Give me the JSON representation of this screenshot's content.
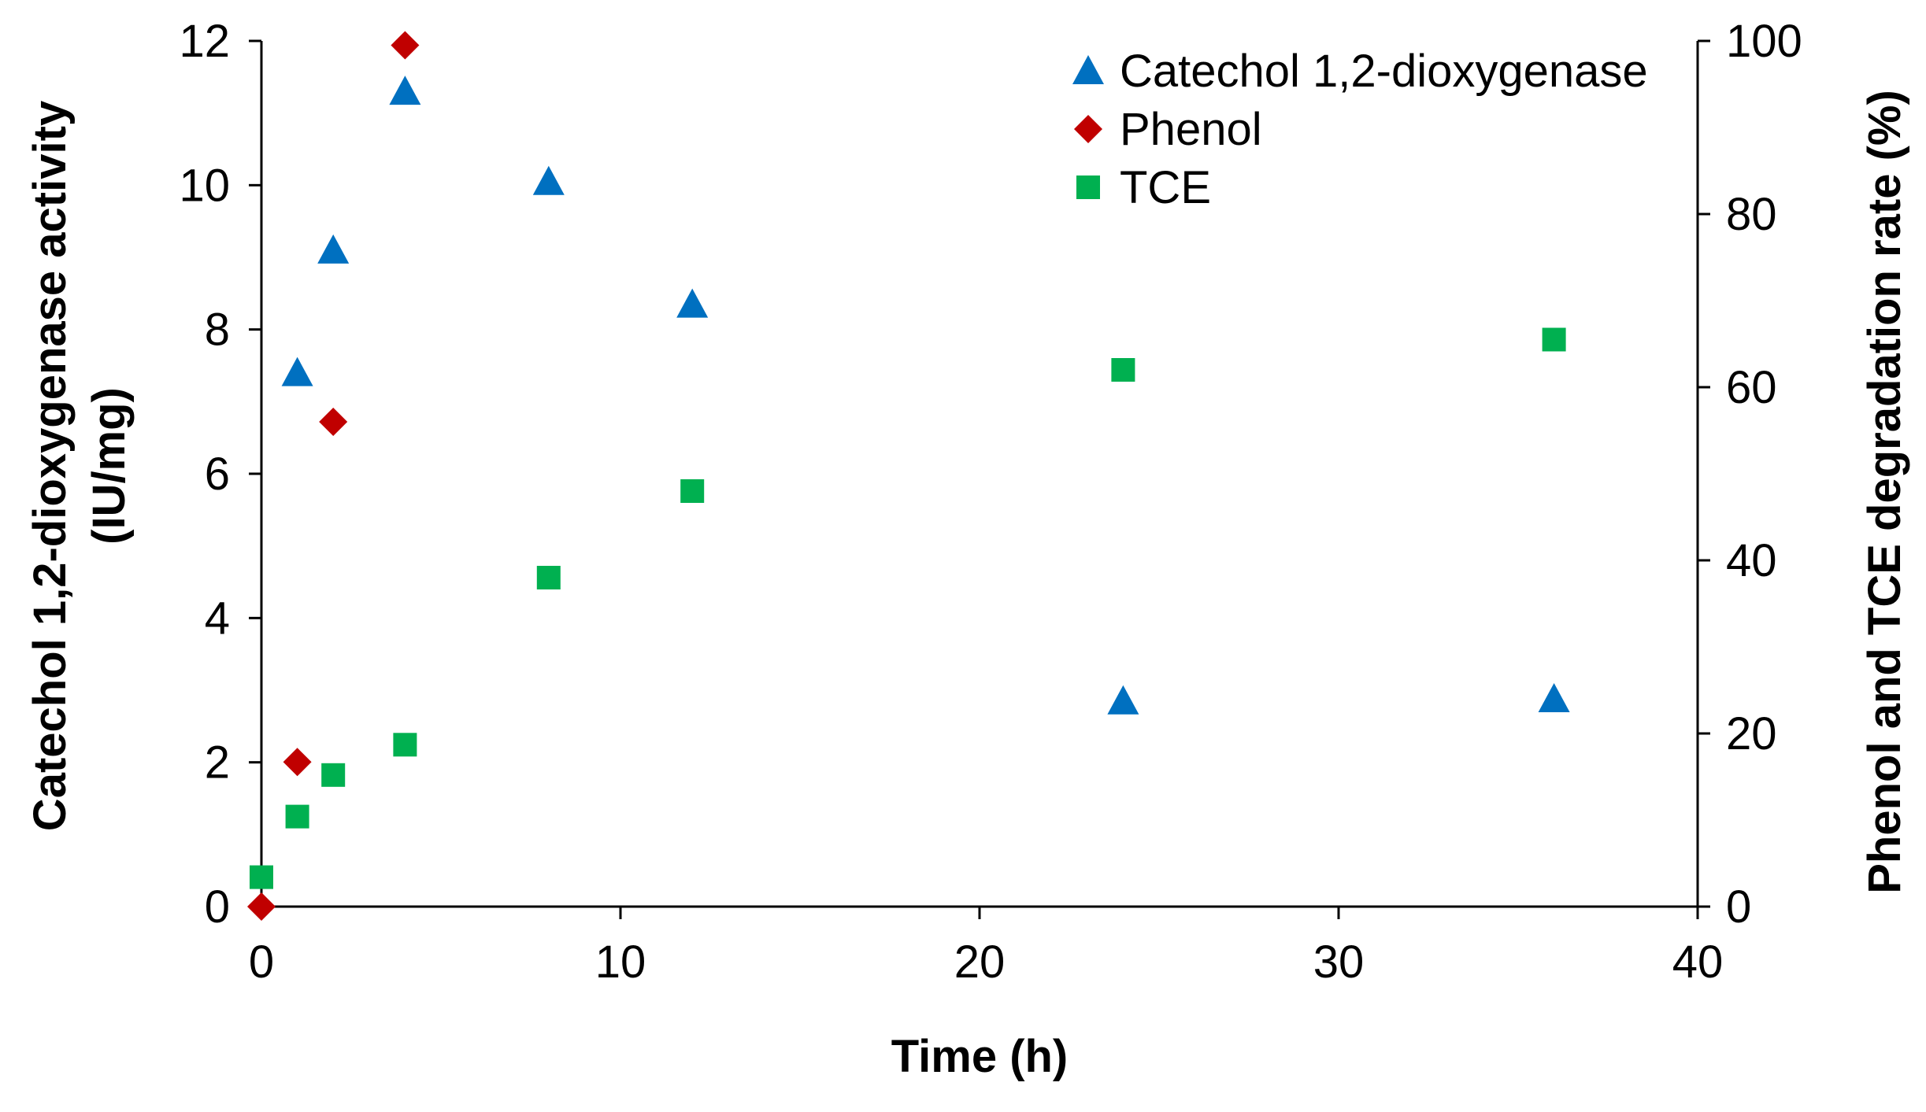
{
  "chart_data": {
    "type": "scatter",
    "xlabel": "Time (h)",
    "ylabel_left": [
      "Catechol 1,2-dioxygenase activity",
      "(IU/mg)"
    ],
    "ylabel_right": "Phenol and TCE degradation rate (%)",
    "xlim": [
      0,
      40
    ],
    "xticks": [
      0,
      10,
      20,
      30,
      40
    ],
    "ylim_left": [
      0,
      12
    ],
    "yticks_left": [
      0,
      2,
      4,
      6,
      8,
      10,
      12
    ],
    "ylim_right": [
      0,
      100
    ],
    "yticks_right": [
      0,
      20,
      40,
      60,
      80,
      100
    ],
    "grid": false,
    "legend_position": "top-right",
    "series": [
      {
        "name": "Catechol 1,2-dioxygenase",
        "axis": "left",
        "marker": "triangle",
        "color": "#0070C0",
        "x": [
          1,
          2,
          4,
          8,
          12,
          24,
          36
        ],
        "y": [
          7.4,
          9.1,
          11.3,
          10.05,
          8.35,
          2.85,
          2.88
        ]
      },
      {
        "name": "Phenol",
        "axis": "right",
        "marker": "diamond",
        "color": "#C00000",
        "x": [
          0,
          1,
          2,
          4
        ],
        "y": [
          0,
          16.7,
          56,
          99.5
        ]
      },
      {
        "name": "TCE",
        "axis": "right",
        "marker": "square",
        "color": "#00B050",
        "x": [
          0,
          1,
          2,
          4,
          8,
          12,
          24,
          36
        ],
        "y": [
          3.4,
          10.4,
          15.2,
          18.7,
          38,
          48,
          62,
          65.5
        ]
      }
    ]
  }
}
